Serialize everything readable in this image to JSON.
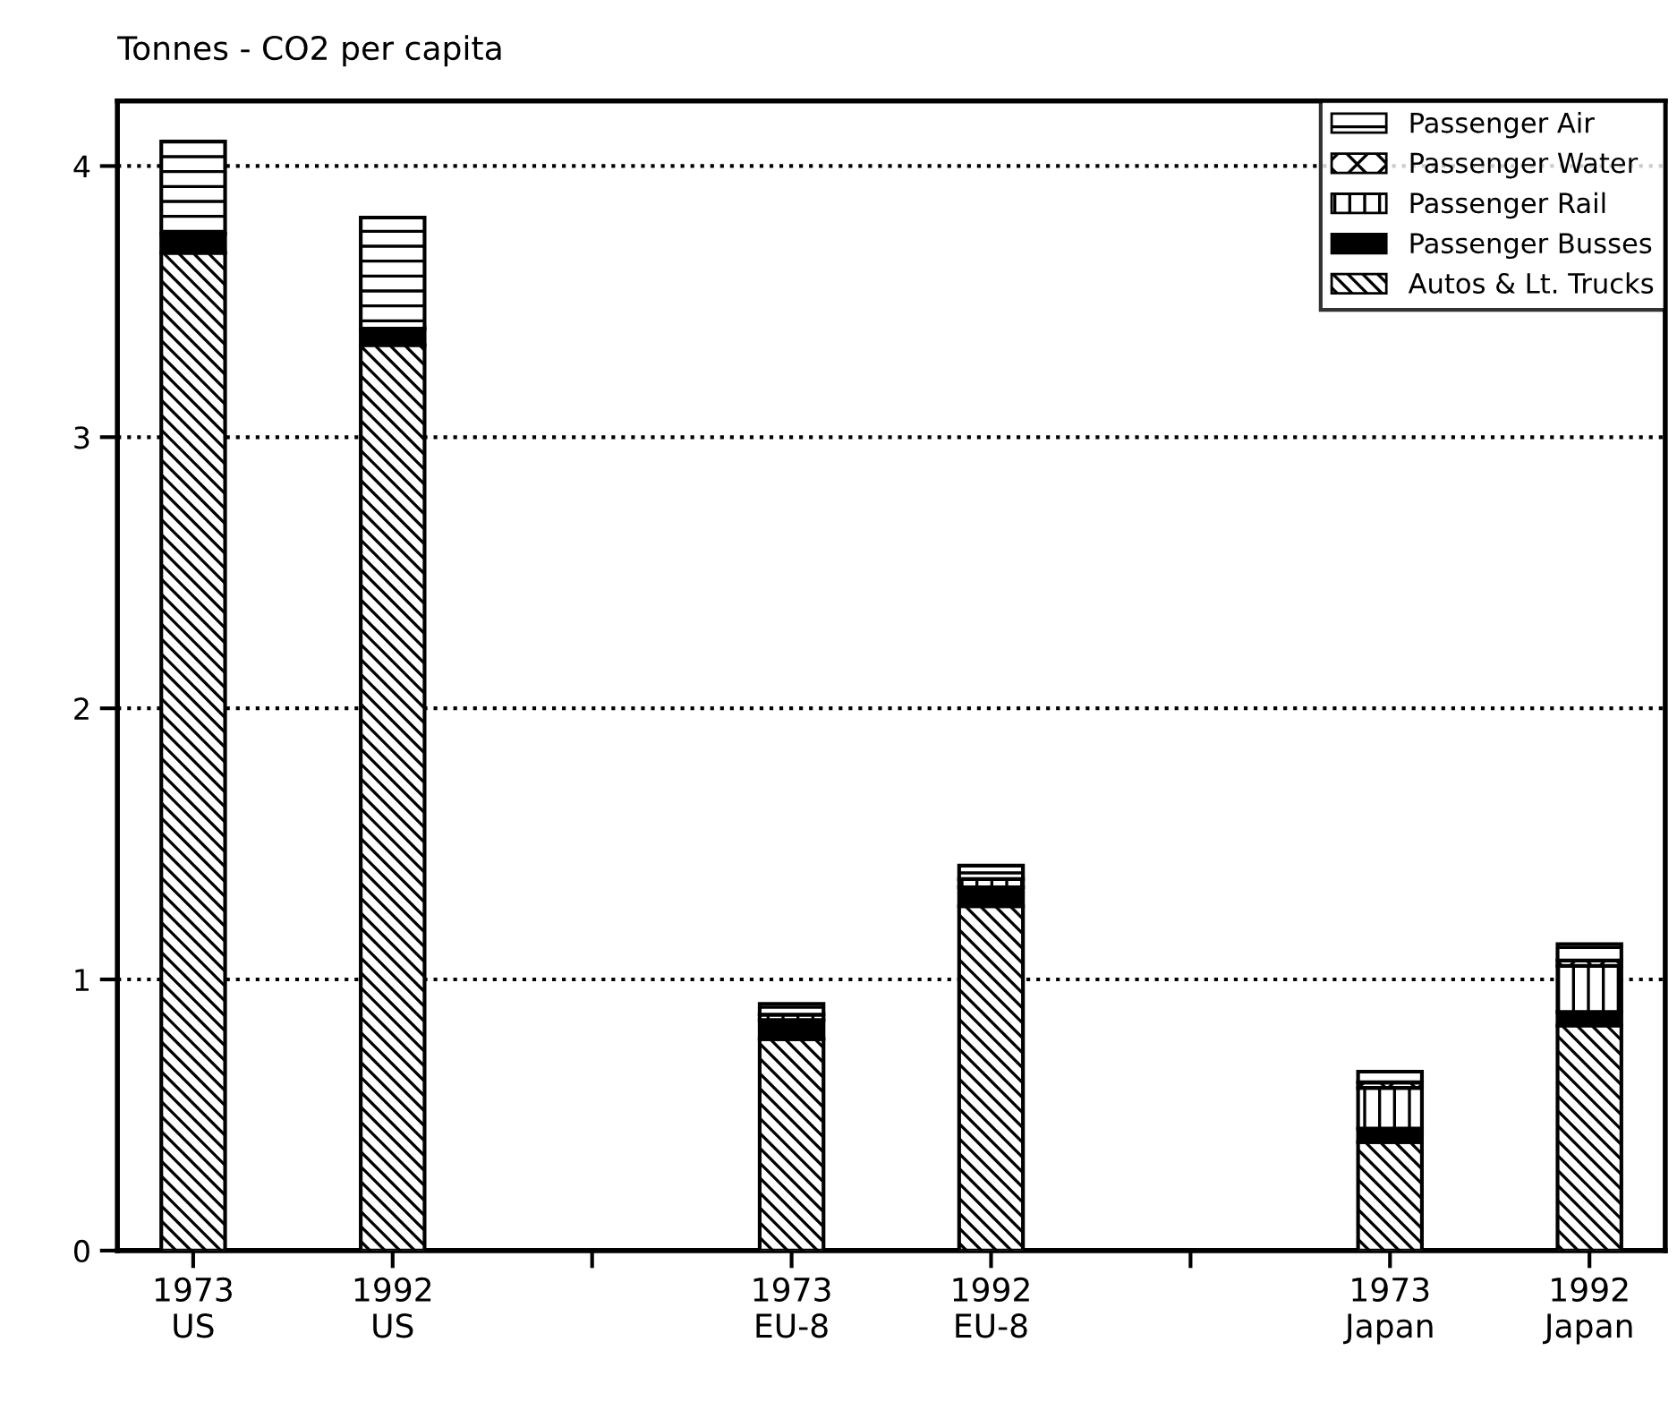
{
  "chart_data": {
    "type": "bar",
    "stacked": true,
    "ylabel": "Tonnes - CO2 per capita",
    "categories": [
      "1973\nUS",
      "1992\nUS",
      null,
      "1973\nEU-8",
      "1992\nEU-8",
      null,
      "1973\nJapan",
      "1992\nJapan"
    ],
    "series": [
      {
        "name": "Autos & Lt. Trucks",
        "color": "#000000",
        "values": [
          3.68,
          3.34,
          null,
          0.78,
          1.27,
          null,
          0.4,
          0.83
        ]
      },
      {
        "name": "Passenger Busses",
        "color": "#000000",
        "values": [
          0.07,
          0.06,
          null,
          0.07,
          0.07,
          null,
          0.05,
          0.05
        ]
      },
      {
        "name": "Passenger Rail",
        "color": "#000000",
        "values": [
          null,
          null,
          null,
          0.02,
          0.03,
          null,
          0.15,
          0.17
        ]
      },
      {
        "name": "Passenger Water",
        "color": "#000000",
        "values": [
          null,
          null,
          null,
          null,
          null,
          null,
          0.02,
          0.02
        ]
      },
      {
        "name": "Passenger Air",
        "color": "#000000",
        "values": [
          0.34,
          0.41,
          null,
          0.04,
          0.05,
          null,
          0.04,
          0.06
        ]
      }
    ],
    "ylim": [
      0,
      4.24
    ],
    "yticks": [
      0,
      1,
      2,
      3,
      4
    ],
    "grid": "y",
    "line_style": "dotted",
    "legend": "top right"
  }
}
